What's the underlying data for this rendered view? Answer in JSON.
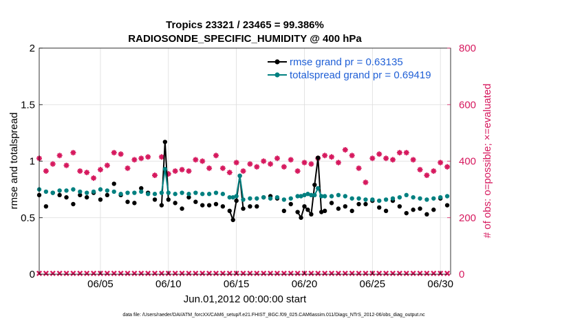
{
  "chart_data": {
    "type": "line",
    "title_line1": "Tropics 23321 / 23465 = 99.386%",
    "title_line2": "RADIOSONDE_SPECIFIC_HUMIDITY @ 400 hPa",
    "xlabel": "Jun.01,2012 00:00:00 start",
    "ylabel_left": "rmse and totalspread",
    "ylabel_right": "# of obs: o=possible; ×=evaluated",
    "footer": "data file: /Users/raeder/DAI/ATM_forcXX/CAM6_setup/f.e21.FHIST_BGC.f09_025.CAM6assim.011/Diags_NTrS_2012-06/obs_diag_output.nc",
    "xlim": [
      0.5,
      30.75
    ],
    "ylim_left": [
      0,
      2
    ],
    "ylim_right": [
      0,
      800
    ],
    "xticks": [
      5,
      10,
      15,
      20,
      25,
      30
    ],
    "xtick_labels": [
      "06/05",
      "06/10",
      "06/15",
      "06/20",
      "06/25",
      "06/30"
    ],
    "yticks_left": [
      0,
      0.5,
      1,
      1.5,
      2
    ],
    "ytick_labels_left": [
      "0",
      "0.5",
      "1",
      "1.5",
      "2"
    ],
    "yticks_right": [
      0,
      200,
      400,
      600,
      800
    ],
    "ytick_labels_right": [
      "0",
      "200",
      "400",
      "600",
      "800"
    ],
    "grid": true,
    "legend_position": "top-right",
    "colors": {
      "rmse": "#000000",
      "totalspread": "#008080",
      "obs": "#d6195e",
      "legend_text": "#1f5fd6"
    },
    "series": [
      {
        "name": "rmse grand pr = 0.63135",
        "axis": "left",
        "x": [
          0.5,
          1.0,
          1.5,
          2.0,
          2.5,
          3.0,
          3.5,
          4.0,
          4.5,
          5.0,
          5.5,
          6.0,
          6.5,
          7.0,
          7.5,
          8.0,
          8.5,
          9.0,
          9.5,
          9.75,
          10.0,
          10.5,
          11.0,
          11.5,
          12.0,
          12.5,
          13.0,
          13.5,
          14.0,
          14.5,
          14.75,
          15.0,
          15.25,
          15.5,
          16.0,
          16.5,
          17.0,
          17.5,
          18.0,
          18.5,
          19.0,
          19.5,
          19.75,
          20.0,
          20.25,
          20.5,
          20.75,
          21.0,
          21.25,
          21.5,
          22.0,
          22.5,
          23.0,
          23.5,
          24.0,
          24.5,
          25.0,
          25.5,
          26.0,
          26.5,
          27.0,
          27.5,
          28.0,
          28.5,
          29.0,
          29.5,
          30.0,
          30.5
        ],
        "values": [
          0.7,
          0.6,
          0.72,
          0.7,
          0.68,
          0.62,
          0.7,
          0.68,
          0.72,
          0.66,
          0.7,
          0.8,
          0.7,
          0.64,
          0.63,
          0.76,
          0.72,
          0.66,
          0.61,
          1.17,
          0.66,
          0.63,
          0.58,
          0.68,
          0.64,
          0.61,
          0.61,
          0.62,
          0.6,
          0.56,
          0.48,
          0.65,
          0.87,
          0.58,
          0.6,
          0.6,
          0.68,
          0.69,
          0.67,
          0.56,
          0.62,
          0.55,
          0.5,
          0.6,
          0.57,
          0.53,
          0.79,
          1.03,
          0.55,
          0.56,
          0.63,
          0.58,
          0.6,
          0.56,
          0.62,
          0.62,
          0.65,
          0.59,
          0.56,
          0.65,
          0.6,
          0.54,
          0.57,
          0.58,
          0.53,
          0.57,
          0.67,
          0.61
        ]
      },
      {
        "name": "totalspread grand pr = 0.69419",
        "axis": "left",
        "x": [
          0.5,
          1.0,
          1.5,
          2.0,
          2.5,
          3.0,
          3.5,
          4.0,
          4.5,
          5.0,
          5.5,
          6.0,
          6.5,
          7.0,
          7.5,
          8.0,
          8.5,
          9.0,
          9.5,
          9.75,
          10.0,
          10.5,
          11.0,
          11.5,
          12.0,
          12.5,
          13.0,
          13.5,
          14.0,
          14.5,
          14.75,
          15.0,
          15.25,
          15.5,
          16.0,
          16.5,
          17.0,
          17.5,
          18.0,
          18.5,
          19.0,
          19.5,
          19.75,
          20.0,
          20.25,
          20.5,
          20.75,
          21.0,
          21.25,
          21.5,
          22.0,
          22.5,
          23.0,
          23.5,
          24.0,
          24.5,
          25.0,
          25.5,
          26.0,
          26.5,
          27.0,
          27.5,
          28.0,
          28.5,
          29.0,
          29.5,
          30.0,
          30.5
        ],
        "values": [
          0.75,
          0.73,
          0.72,
          0.74,
          0.74,
          0.75,
          0.73,
          0.72,
          0.73,
          0.75,
          0.74,
          0.73,
          0.71,
          0.72,
          0.72,
          0.73,
          0.71,
          0.71,
          0.72,
          0.93,
          0.72,
          0.71,
          0.72,
          0.71,
          0.72,
          0.71,
          0.71,
          0.72,
          0.71,
          0.68,
          0.68,
          0.69,
          0.87,
          0.66,
          0.67,
          0.67,
          0.68,
          0.67,
          0.68,
          0.66,
          0.67,
          0.69,
          0.69,
          0.7,
          0.71,
          0.7,
          0.7,
          0.76,
          0.69,
          0.69,
          0.69,
          0.7,
          0.69,
          0.67,
          0.67,
          0.66,
          0.66,
          0.65,
          0.66,
          0.67,
          0.68,
          0.7,
          0.68,
          0.67,
          0.66,
          0.67,
          0.68,
          0.69
        ]
      },
      {
        "name": "obs possible",
        "axis": "right",
        "marker": "asterisk",
        "x": [
          0.5,
          1.0,
          1.5,
          2.0,
          2.5,
          3.0,
          3.5,
          4.0,
          4.5,
          5.0,
          5.5,
          6.0,
          6.5,
          7.0,
          7.5,
          8.0,
          8.5,
          9.0,
          9.5,
          10.0,
          10.5,
          11.0,
          11.5,
          12.0,
          12.5,
          13.0,
          13.5,
          14.0,
          14.5,
          15.0,
          15.5,
          16.0,
          16.5,
          17.0,
          17.5,
          18.0,
          18.5,
          19.0,
          19.5,
          20.0,
          20.5,
          21.0,
          21.5,
          22.0,
          22.5,
          23.0,
          23.5,
          24.0,
          24.5,
          25.0,
          25.5,
          26.0,
          26.5,
          27.0,
          27.5,
          28.0,
          28.5,
          29.0,
          29.5,
          30.0,
          30.5
        ],
        "values": [
          410,
          365,
          390,
          420,
          385,
          430,
          365,
          360,
          340,
          370,
          385,
          430,
          425,
          375,
          405,
          410,
          415,
          350,
          415,
          355,
          365,
          370,
          365,
          405,
          400,
          375,
          420,
          375,
          360,
          395,
          365,
          390,
          380,
          400,
          390,
          410,
          380,
          405,
          365,
          395,
          390,
          410,
          420,
          415,
          395,
          440,
          420,
          375,
          325,
          410,
          425,
          410,
          405,
          430,
          430,
          405,
          370,
          350,
          365,
          395,
          380
        ]
      },
      {
        "name": "obs evaluated",
        "axis": "right",
        "marker": "cross",
        "x": [
          0.5,
          1.0,
          1.5,
          2.0,
          2.5,
          3.0,
          3.5,
          4.0,
          4.5,
          5.0,
          5.5,
          6.0,
          6.5,
          7.0,
          7.5,
          8.0,
          8.5,
          9.0,
          9.5,
          10.0,
          10.5,
          11.0,
          11.5,
          12.0,
          12.5,
          13.0,
          13.5,
          14.0,
          14.5,
          15.0,
          15.5,
          16.0,
          16.5,
          17.0,
          17.5,
          18.0,
          18.5,
          19.0,
          19.5,
          20.0,
          20.5,
          21.0,
          21.5,
          22.0,
          22.5,
          23.0,
          23.5,
          24.0,
          24.5,
          25.0,
          25.5,
          26.0,
          26.5,
          27.0,
          27.5,
          28.0,
          28.5,
          29.0,
          29.5,
          30.0,
          30.5
        ],
        "values": [
          3,
          3,
          3,
          3,
          3,
          3,
          3,
          3,
          3,
          3,
          3,
          3,
          3,
          3,
          3,
          3,
          3,
          3,
          3,
          3,
          3,
          3,
          3,
          3,
          3,
          3,
          3,
          3,
          3,
          3,
          3,
          3,
          3,
          3,
          3,
          3,
          3,
          3,
          3,
          3,
          3,
          3,
          3,
          3,
          3,
          3,
          3,
          3,
          3,
          3,
          3,
          3,
          3,
          3,
          3,
          3,
          3,
          3,
          3,
          3,
          3
        ]
      }
    ]
  }
}
